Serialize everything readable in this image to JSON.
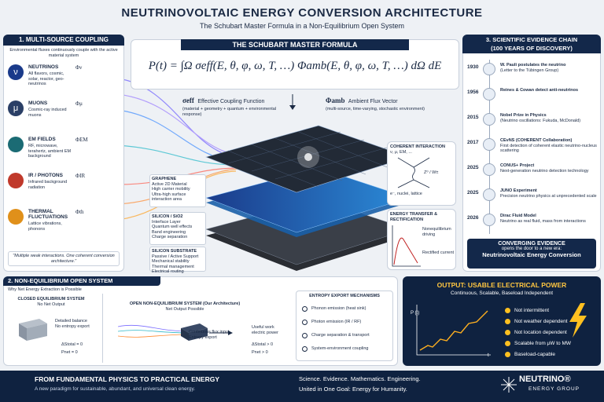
{
  "header": {
    "title": "NEUTRINOVOLTAIC ENERGY CONVERSION ARCHITECTURE",
    "subtitle": "The Schubart Master Formula in a Non-Equilibrium Open System"
  },
  "coupling": {
    "title": "1. MULTI-SOURCE COUPLING",
    "subtitle": "Environmental fluxes continuously couple with the active material system",
    "sources": [
      {
        "symbol": "ν",
        "name": "NEUTRINOS",
        "flux": "Φν",
        "description": "All flavors, cosmic, solar, reactor, geo-neutrinos"
      },
      {
        "symbol": "μ",
        "name": "MUONS",
        "flux": "Φμ",
        "description": "Cosmic-ray induced muons"
      },
      {
        "name": "EM FIELDS",
        "flux": "ΦEM",
        "description": "RF, microwave, terahertz, ambient EM background"
      },
      {
        "name": "IR / PHOTONS",
        "flux": "ΦIR",
        "description": "Infrared background radiation"
      },
      {
        "name": "THERMAL FLUCTUATIONS",
        "flux": "Φth",
        "description": "Lattice vibrations, phonons"
      }
    ],
    "quote": "\"Multiple weak interactions. One coherent conversion architecture.\""
  },
  "formula": {
    "title": "THE SCHUBART MASTER FORMULA",
    "equation": "P(t) = ∫Ω σeff(E, θ, φ, ω, T, …) Φamb(E, θ, φ, ω, T, …) dΩ dE",
    "sigma": {
      "symbol": "σeff",
      "name": "Effective Coupling Function",
      "description": "(material + geometry + quantum + environmental response)"
    },
    "phi": {
      "symbol": "Φamb",
      "name": "Ambient Flux Vector",
      "description": "(multi-source, time-varying, stochastic environment)"
    }
  },
  "layers": [
    {
      "name": "GRAPHENE",
      "role": "Active 2D Material",
      "properties": [
        "High carrier mobility",
        "Ultra-high surface interaction area"
      ]
    },
    {
      "name": "SILICON / SiO2",
      "role": "Interface Layer",
      "properties": [
        "Quantum well effects",
        "Band engineering",
        "Charge separation"
      ]
    },
    {
      "name": "SILICON SUBSTRATE",
      "role": "Passive / Active Support",
      "properties": [
        "Mechanical stability",
        "Thermal management",
        "Electrical routing"
      ]
    }
  ],
  "coherent": {
    "title": "COHERENT INTERACTION",
    "particles": "ν, μ, EM, ...",
    "boson": "Z⁰ / W±",
    "targets": "e⁻, nuclei, lattice"
  },
  "rectification": {
    "title": "ENERGY TRANSFER & RECTIFICATION",
    "driving": "Nonequilibrium driving",
    "current": "Rectified current"
  },
  "evidence": {
    "title": "3. SCIENTIFIC EVIDENCE CHAIN",
    "subtitle": "(100 YEARS OF DISCOVERY)",
    "events": [
      {
        "year": "1930",
        "title": "W. Pauli postulates the neutrino",
        "detail": "(Letter to the Tübingen Group)"
      },
      {
        "year": "1956",
        "title": "Reines & Cowan detect anti-neutrinos"
      },
      {
        "year": "2015",
        "title": "Nobel Prize in Physics",
        "detail": "(Neutrino oscillations: Fukuda, McDonald)"
      },
      {
        "year": "2017",
        "title": "CEvNS (COHERENT Collaboration)",
        "detail": "First detection of coherent elastic neutrino-nucleus scattering"
      },
      {
        "year": "2025",
        "title": "CONUS+ Project",
        "detail": "Next-generation neutrino detection technology"
      },
      {
        "year": "2025",
        "title": "JUNO Experiment",
        "detail": "Precision neutrino physics at unprecedented scale"
      },
      {
        "year": "2026",
        "title": "Dirac Fluid Model",
        "detail": "Neutrino as real fluid, mass from interactions"
      }
    ],
    "converging": {
      "title": "CONVERGING EVIDENCE",
      "text": "opens the door to a new era:",
      "highlight": "Neutrinovoltaic Energy Conversion"
    }
  },
  "open_system": {
    "title": "2. NON-EQUILIBRIUM OPEN SYSTEM",
    "subtitle": "Why Net Energy Extraction is Possible",
    "closed": {
      "title": "CLOSED EQUILIBRIUM SYSTEM",
      "status": "No Net Output",
      "notes": [
        "Detailed balance",
        "No entropy export"
      ],
      "entropy": "ΔStotal = 0",
      "power": "Pnet = 0"
    },
    "open": {
      "title": "OPEN NON-EQUILIBRIUM SYSTEM (Our Architecture)",
      "status": "Net Output Possible",
      "input": [
        "Continuous flux input",
        "Entropy export"
      ],
      "output": [
        "Useful work",
        "electric power"
      ],
      "entropy": "ΔStotal > 0",
      "power": "Pnet > 0"
    },
    "mechanisms": {
      "title": "ENTROPY EXPORT MECHANISMS",
      "items": [
        "Phonon emission (heat sink)",
        "Photon emission (IR / RF)",
        "Charge separation & transport",
        "System-environment coupling"
      ]
    }
  },
  "output": {
    "title": "OUTPUT: USABLE ELECTRICAL POWER",
    "subtitle": "Continuous, Scalable, Baseload Independent",
    "y_label": "P (t)",
    "x_label": "t",
    "benefits": [
      "Not intermittent",
      "Not weather dependent",
      "Not location dependent",
      "Scalable from μW to MW",
      "Baseload-capable"
    ]
  },
  "footer": {
    "title": "FROM FUNDAMENTAL PHYSICS TO PRACTICAL ENERGY",
    "text": "A new paradigm for sustainable, abundant, and universal clean energy.",
    "motto": "Science. Evidence. Mathematics. Engineering.",
    "goal": "United in One Goal: Energy for Humanity.",
    "brand": "NEUTRINO®",
    "brand_sub": "ENERGY GROUP"
  }
}
